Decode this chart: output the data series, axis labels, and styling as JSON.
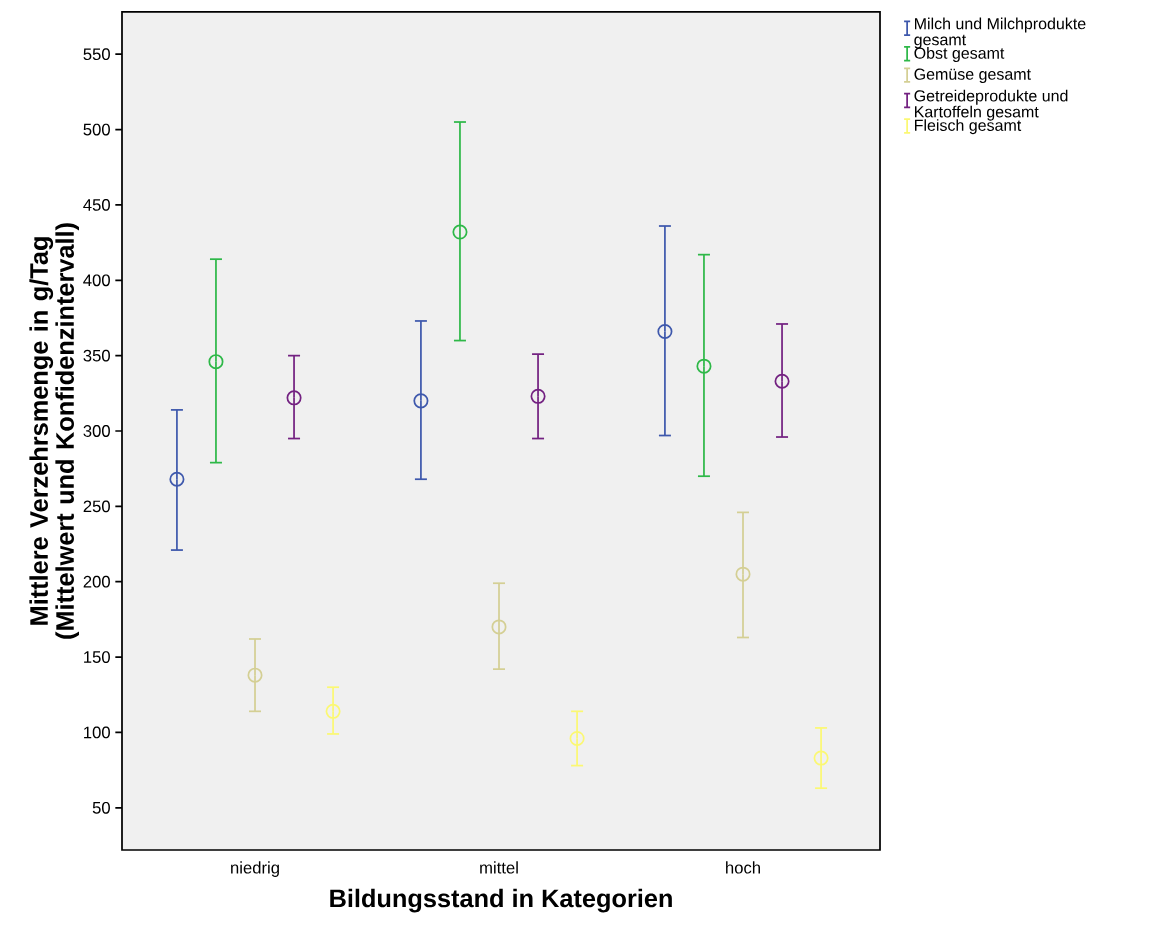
{
  "chart_data": {
    "type": "scatter",
    "xlabel": "Bildungsstand in Kategorien",
    "ylabel": "Mittlere Verzehrsmenge in g/Tag (Mittelwert und Konfidenzintervall)",
    "categories": [
      "niedrig",
      "mittel",
      "hoch"
    ],
    "ylim": [
      22,
      578
    ],
    "yticks": [
      50,
      100,
      150,
      200,
      250,
      300,
      350,
      400,
      450,
      500,
      550
    ],
    "marker": "circle",
    "legend": "right",
    "series": [
      {
        "name": "Milch und Milchprodukte gesamt",
        "color": "#3e58ac",
        "values": [
          268,
          320,
          366
        ],
        "errors": [
          [
            221,
            314
          ],
          [
            268,
            373
          ],
          [
            297,
            436
          ]
        ]
      },
      {
        "name": "Obst gesamt",
        "color": "#2eb848",
        "values": [
          346,
          432,
          343
        ],
        "errors": [
          [
            279,
            414
          ],
          [
            360,
            505
          ],
          [
            270,
            417
          ]
        ]
      },
      {
        "name": "Gemüse gesamt",
        "color": "#d4cf94",
        "values": [
          138,
          170,
          205
        ],
        "errors": [
          [
            114,
            162
          ],
          [
            142,
            199
          ],
          [
            163,
            246
          ]
        ]
      },
      {
        "name": "Getreideprodukte und Kartoffeln gesamt",
        "color": "#732181",
        "values": [
          322,
          323,
          333
        ],
        "errors": [
          [
            295,
            350
          ],
          [
            295,
            351
          ],
          [
            296,
            371
          ]
        ]
      },
      {
        "name": "Fleisch gesamt",
        "color": "#fbf873",
        "values": [
          114,
          96,
          83
        ],
        "errors": [
          [
            99,
            130
          ],
          [
            78,
            114
          ],
          [
            63,
            103
          ]
        ]
      }
    ]
  }
}
